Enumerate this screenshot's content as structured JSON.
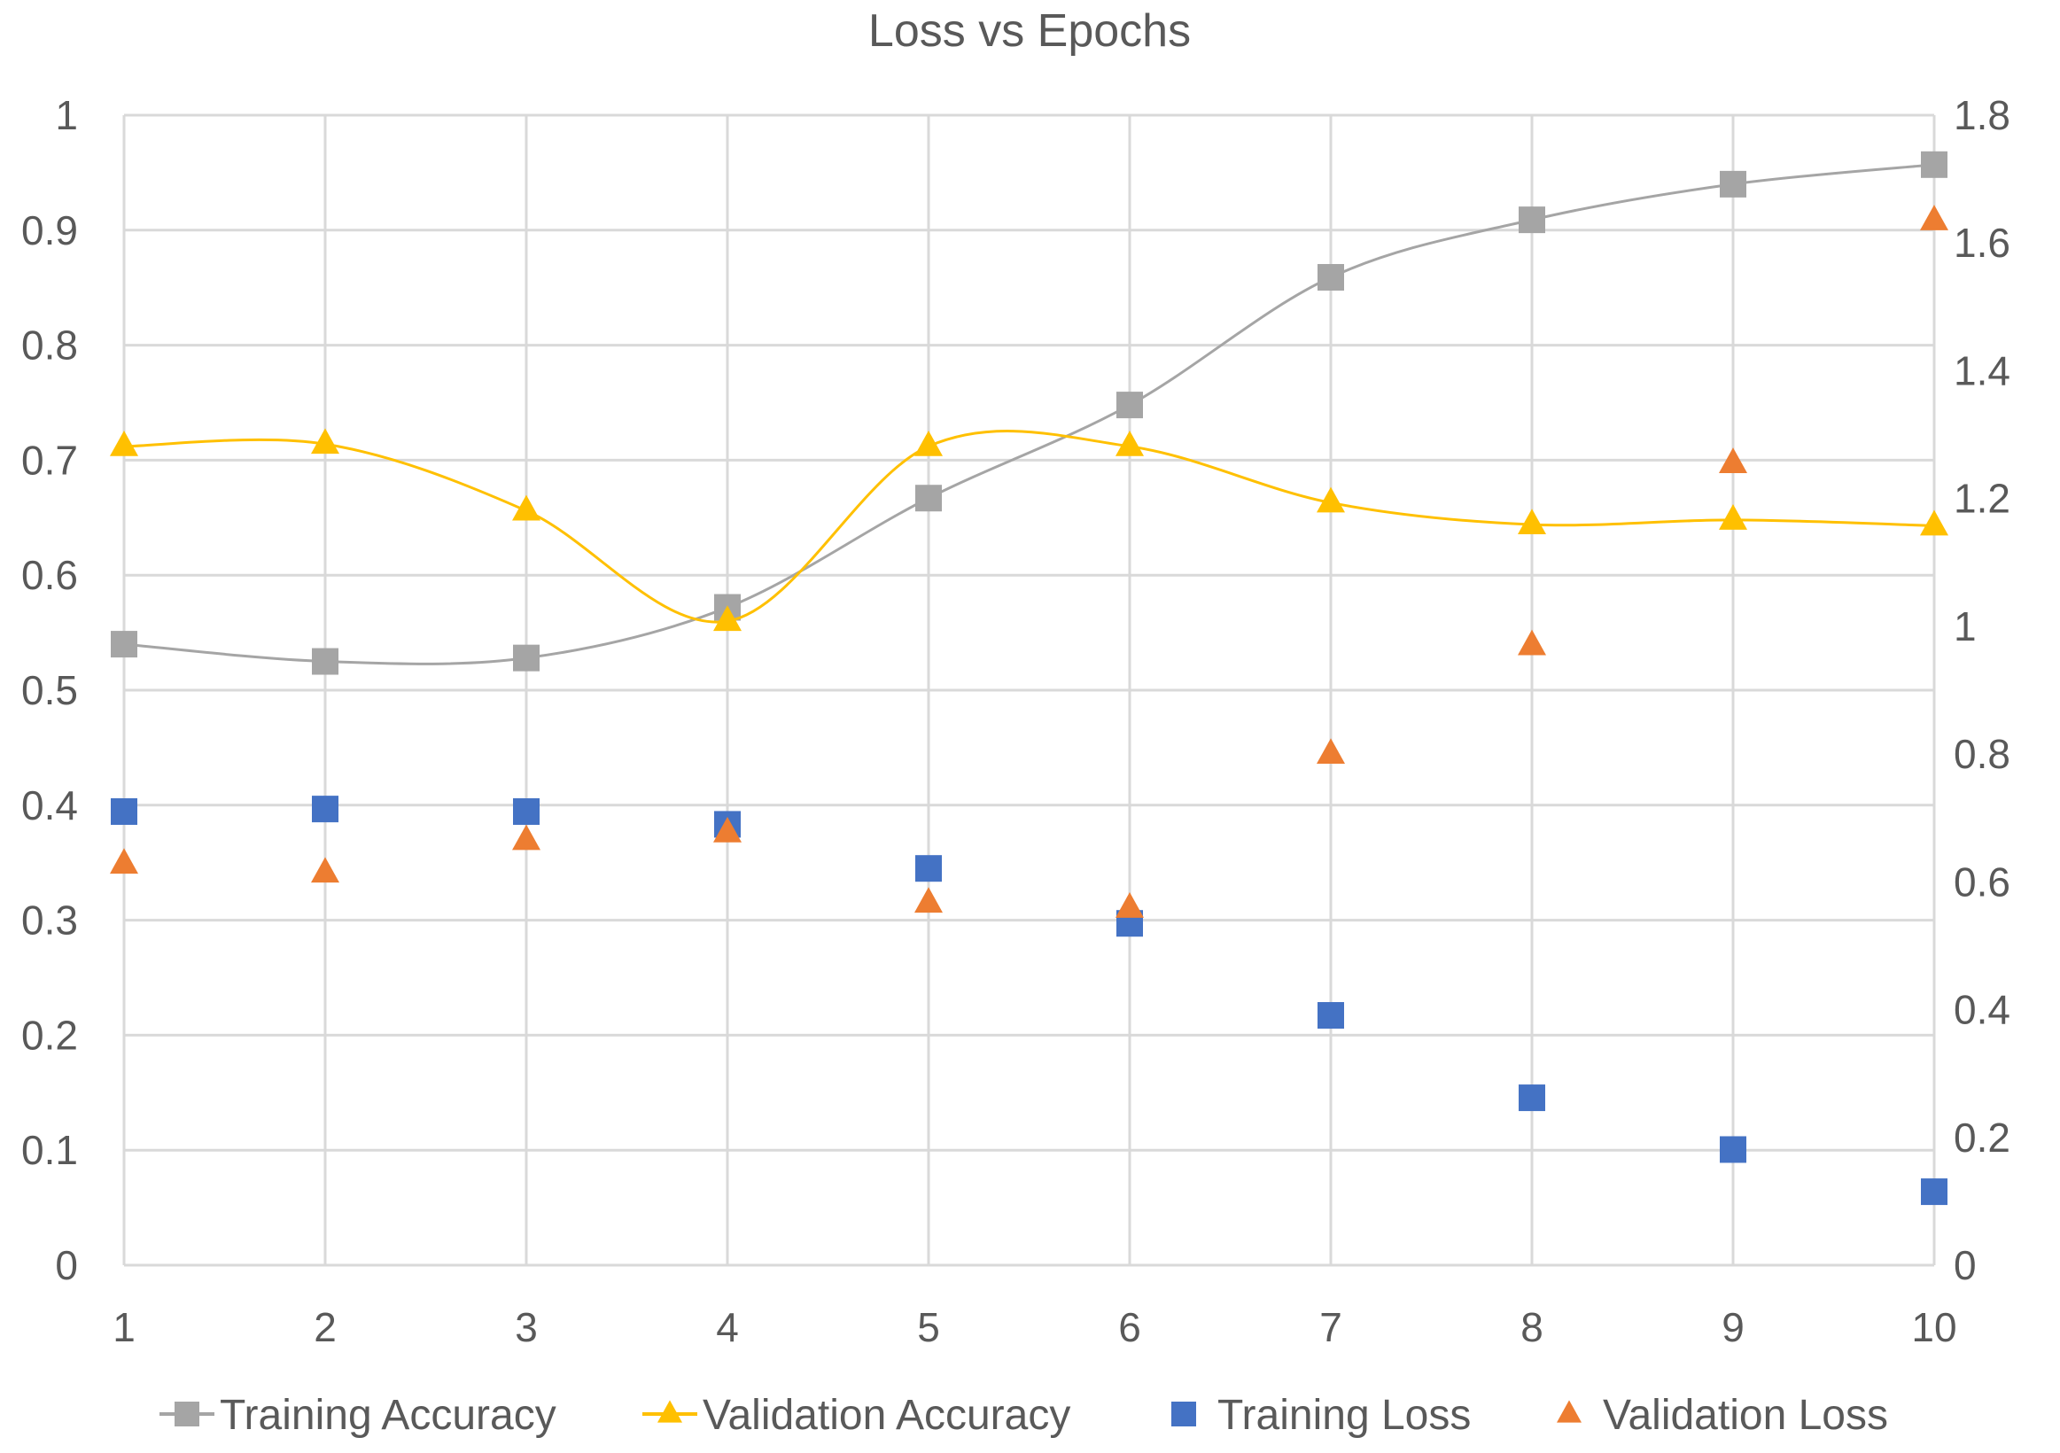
{
  "chart_data": {
    "type": "line",
    "title": "Loss vs Epochs",
    "categories": [
      "1",
      "2",
      "3",
      "4",
      "5",
      "6",
      "7",
      "8",
      "9",
      "10"
    ],
    "x": [
      1,
      2,
      3,
      4,
      5,
      6,
      7,
      8,
      9,
      10
    ],
    "left_axis": {
      "ylim": [
        0,
        1
      ],
      "ticks": [
        0,
        0.1,
        0.2,
        0.3,
        0.4,
        0.5,
        0.6,
        0.7,
        0.8,
        0.9,
        1
      ],
      "tick_labels": [
        "0",
        "0.1",
        "0.2",
        "0.3",
        "0.4",
        "0.5",
        "0.6",
        "0.7",
        "0.8",
        "0.9",
        "1"
      ]
    },
    "right_axis": {
      "ylim": [
        0,
        1.8
      ],
      "ticks": [
        0,
        0.2,
        0.4,
        0.6,
        0.8,
        1,
        1.2,
        1.4,
        1.6,
        1.8
      ],
      "tick_labels": [
        "0",
        "0.2",
        "0.4",
        "0.6",
        "0.8",
        "1",
        "1.2",
        "1.4",
        "1.6",
        "1.8"
      ]
    },
    "grid": true,
    "legend_position": "bottom",
    "series": [
      {
        "name": "Training Accuracy",
        "axis": "left",
        "style": "smooth-line",
        "marker": "square",
        "color": "#a5a5a5",
        "values": [
          0.54,
          0.525,
          0.528,
          0.572,
          0.667,
          0.748,
          0.859,
          0.909,
          0.94,
          0.957
        ]
      },
      {
        "name": "Validation Accuracy",
        "axis": "left",
        "style": "smooth-line",
        "marker": "triangle",
        "color": "#ffc000",
        "values": [
          0.712,
          0.714,
          0.656,
          0.56,
          0.712,
          0.712,
          0.663,
          0.644,
          0.648,
          0.643
        ]
      },
      {
        "name": "Training Loss",
        "axis": "right",
        "style": "markers",
        "marker": "square",
        "color": "#4472c4",
        "values": [
          0.71,
          0.714,
          0.71,
          0.69,
          0.621,
          0.535,
          0.391,
          0.262,
          0.181,
          0.115
        ]
      },
      {
        "name": "Validation Loss",
        "axis": "right",
        "style": "markers",
        "marker": "triangle",
        "color": "#ed7d31",
        "values": [
          0.628,
          0.614,
          0.665,
          0.677,
          0.567,
          0.559,
          0.8,
          0.97,
          1.255,
          1.635
        ]
      }
    ]
  }
}
